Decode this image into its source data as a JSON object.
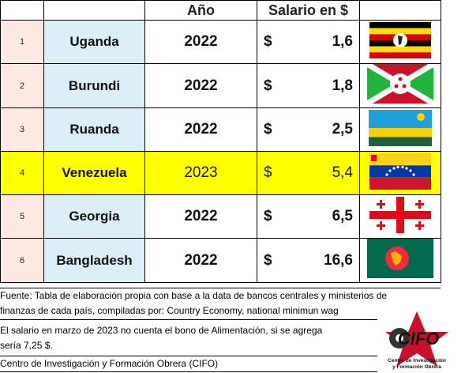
{
  "header": {
    "year_label": "Año",
    "salary_label": "Salario en $"
  },
  "rows": [
    {
      "num": "1",
      "country": "Uganda",
      "year": "2022",
      "currency": "$",
      "amount": "1,6",
      "flag": "uganda-flag"
    },
    {
      "num": "2",
      "country": "Burundi",
      "year": "2022",
      "currency": "$",
      "amount": "1,8",
      "flag": "burundi-flag"
    },
    {
      "num": "3",
      "country": "Ruanda",
      "year": "2022",
      "currency": "$",
      "amount": "2,5",
      "flag": "rwanda-flag"
    },
    {
      "num": "4",
      "country": "Venezuela",
      "year": "2023",
      "currency": "$",
      "amount": "5,4",
      "flag": "venezuela-flag",
      "highlight": true
    },
    {
      "num": "5",
      "country": "Georgia",
      "year": "2022",
      "currency": "$",
      "amount": "6,5",
      "flag": "georgia-flag"
    },
    {
      "num": "6",
      "country": "Bangladesh",
      "year": "2022",
      "currency": "$",
      "amount": "16,6",
      "flag": "bangladesh-flag"
    }
  ],
  "notes": {
    "source_line1": "Fuente: Tabla de elaboración propia con base a la data de bancos centrales y ministerios de",
    "source_line2": "finanzas de cada país, compiladas por: Country Economy, national minimun wag",
    "bono_line1": "El salario en marzo de 2023 no cuenta el bono de Alimentación, si se agrega",
    "bono_line2": "sería 7,25 $.",
    "org": "Centro de Investigación y Formación Obrera (CIFO)"
  },
  "logo": {
    "name": "CIFO",
    "caption1": "Centro de Investigación",
    "caption2": "y Formación Obrera"
  },
  "colors": {
    "highlight": "#ffff00",
    "num_cell": "#fde9e1",
    "country_cell": "#dceef7"
  }
}
